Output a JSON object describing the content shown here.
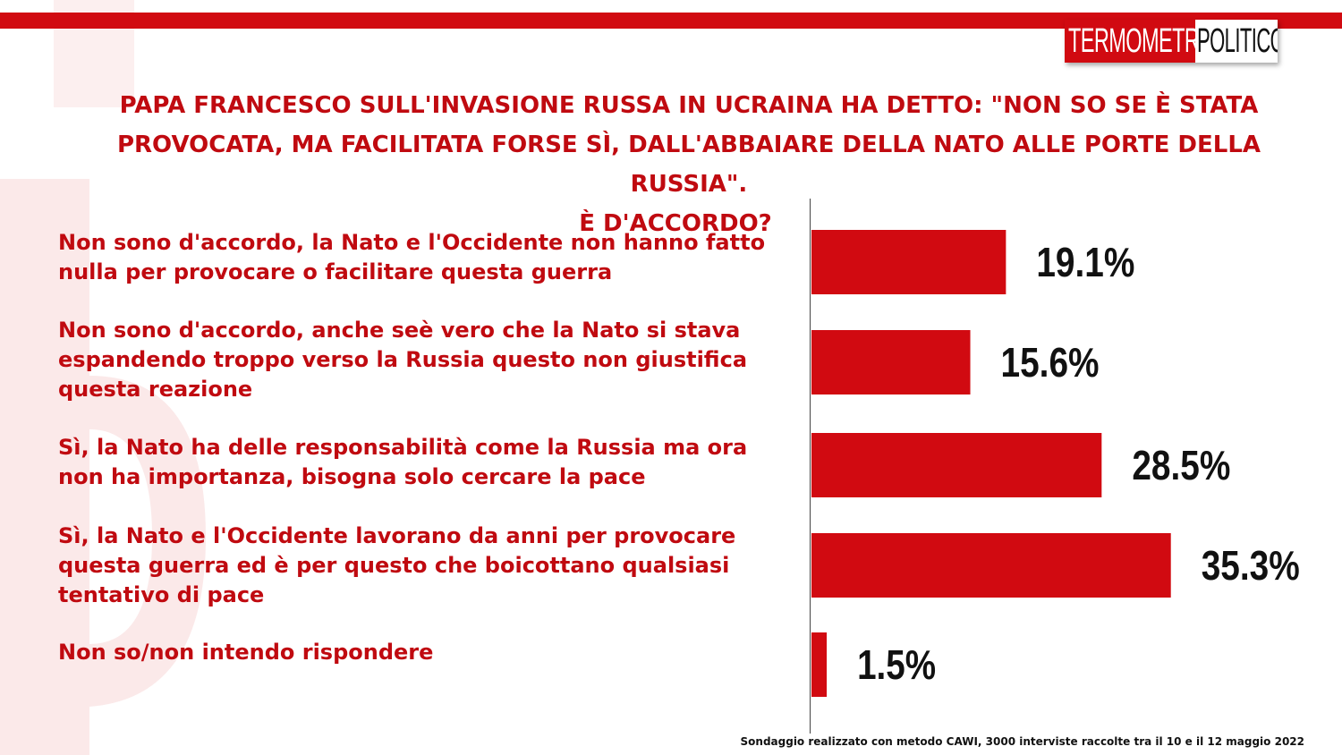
{
  "logo": {
    "part1": "TERMOMETRO",
    "part2": "POLITICO"
  },
  "title": {
    "line1": "PAPA FRANCESCO SULL'INVASIONE RUSSA IN UCRAINA HA DETTO: \"NON SO SE È STATA PROVOCATA, MA FACILITATA FORSE SÌ, DALL'ABBAIARE DELLA NATO ALLE PORTE DELLA RUSSIA\".",
    "line2": "È D'ACCORDO?"
  },
  "colors": {
    "accent": "#d10a11",
    "label_text": "#c00a10",
    "value_text": "#111111"
  },
  "chart_data": {
    "type": "bar",
    "orientation": "horizontal",
    "categories": [
      "Non sono d'accordo, la Nato e l'Occidente non hanno fatto nulla per provocare o facilitare questa guerra",
      "Non sono d'accordo, anche seè vero che la Nato si stava espandendo troppo verso la Russia questo non giustifica questa reazione",
      "Sì, la Nato ha delle responsabilità  come la Russia ma ora non ha importanza, bisogna solo cercare la pace",
      "Sì, la Nato e l'Occidente lavorano da anni per provocare questa guerra ed è per questo che boicottano qualsiasi tentativo di pace",
      "Non so/non intendo rispondere"
    ],
    "values": [
      19.1,
      15.6,
      28.5,
      35.3,
      1.5
    ],
    "value_labels": [
      "19.1%",
      "15.6%",
      "28.5%",
      "35.3%",
      "1.5%"
    ],
    "xlim": [
      0,
      100
    ],
    "grid": false,
    "legend": "none"
  },
  "footer": "Sondaggio realizzato con metodo CAWI, 3000 interviste raccolte tra il 10 e il 12 maggio 2022"
}
